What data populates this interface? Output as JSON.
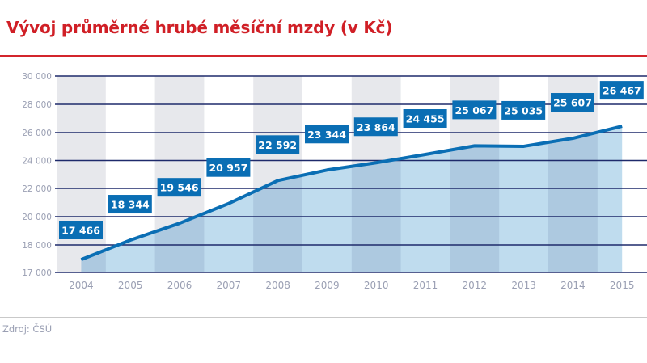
{
  "header": {
    "title": "Vývoj průměrné hrubé měsíční mzdy (v Kč)"
  },
  "footer": {
    "source": "Zdroj: ČSÚ"
  },
  "colors": {
    "title": "#d01f26",
    "line": "#0a6eb4",
    "label_box": "#0a6eb4",
    "area_light": "#bfdcee",
    "area_dark": "#adc9e0",
    "gray_band": "#e7e8ec",
    "gridline": "#1e2a6b",
    "tick_text": "#9a9fb3"
  },
  "chart_data": {
    "type": "area",
    "title": "Vývoj průměrné hrubé měsíční mzdy (v Kč)",
    "xlabel": "",
    "ylabel": "",
    "categories": [
      "2004",
      "2005",
      "2006",
      "2007",
      "2008",
      "2009",
      "2010",
      "2011",
      "2012",
      "2013",
      "2014",
      "2015"
    ],
    "values": [
      17466,
      18344,
      19546,
      20957,
      22592,
      23344,
      23864,
      24455,
      25067,
      25035,
      25607,
      26467
    ],
    "value_labels": [
      "17 466",
      "18 344",
      "19 546",
      "20 957",
      "22 592",
      "23 344",
      "23 864",
      "24 455",
      "25 067",
      "25 035",
      "25 607",
      "26 467"
    ],
    "y_ticks": [
      "30 000",
      "28 000",
      "26 000",
      "24 000",
      "22 000",
      "20 000",
      "18 000",
      "17 000"
    ],
    "ylim": [
      17000,
      30000
    ],
    "axis_break_note": "y axis broken between 17 000 and 18 000 (equal spacing)",
    "grid": true,
    "legend": "none",
    "source": "Zdroj: ČSÚ"
  }
}
